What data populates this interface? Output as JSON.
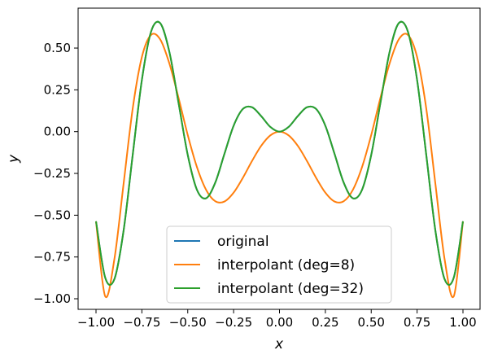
{
  "chart_data": {
    "type": "line",
    "title": "",
    "xlabel": "x",
    "ylabel": "y",
    "xlim": [
      -1.1,
      1.1
    ],
    "ylim": [
      -1.08,
      0.74
    ],
    "grid": false,
    "legend_position": "bottom-center",
    "xticks": [
      -1.0,
      -0.75,
      -0.5,
      -0.25,
      0.0,
      0.25,
      0.5,
      0.75,
      1.0
    ],
    "xtick_labels": [
      "−1.00",
      "−0.75",
      "−0.50",
      "−0.25",
      "0.00",
      "0.25",
      "0.50",
      "0.75",
      "1.00"
    ],
    "yticks": [
      0.5,
      0.25,
      0.0,
      -0.25,
      -0.5,
      -0.75,
      -1.0
    ],
    "ytick_labels": [
      "0.50",
      "0.25",
      "0.00",
      "−0.25",
      "−0.50",
      "−0.75",
      "−1.00"
    ],
    "x_half": [
      0,
      0.05,
      0.1,
      0.15,
      0.2,
      0.25,
      0.3,
      0.35,
      0.4,
      0.45,
      0.5,
      0.55,
      0.6,
      0.65,
      0.7,
      0.75,
      0.8,
      0.85,
      0.9,
      0.95,
      1.0
    ],
    "symmetry": "even",
    "series": [
      {
        "name": "original",
        "color": "#1f77b4",
        "values": [
          0,
          0.0282,
          0.0932,
          0.1461,
          0.1351,
          0.0353,
          -0.1328,
          -0.305,
          -0.3985,
          -0.3478,
          -0.1397,
          0.1713,
          0.4762,
          0.649,
          0.5982,
          0.3091,
          -0.1394,
          -0.5948,
          -0.8831,
          -0.8733,
          -0.5366
        ]
      },
      {
        "name": "interpolant (deg=8)",
        "color": "#ff7f0e",
        "values": [
          0,
          -0.0224,
          -0.0852,
          -0.1763,
          -0.277,
          -0.3652,
          -0.4182,
          -0.4165,
          -0.3482,
          -0.212,
          -0.0204,
          0.2016,
          0.4072,
          0.5516,
          0.5788,
          0.4464,
          0.1381,
          -0.3152,
          -0.7642,
          -0.9851,
          -0.5366
        ]
      },
      {
        "name": "interpolant (deg=32)",
        "color": "#2ca02c",
        "values": [
          0,
          0.0282,
          0.0932,
          0.1461,
          0.1351,
          0.0353,
          -0.1328,
          -0.305,
          -0.3985,
          -0.3478,
          -0.1397,
          0.1713,
          0.4762,
          0.649,
          0.5982,
          0.3091,
          -0.1394,
          -0.5948,
          -0.8831,
          -0.8733,
          -0.5366
        ]
      }
    ]
  }
}
